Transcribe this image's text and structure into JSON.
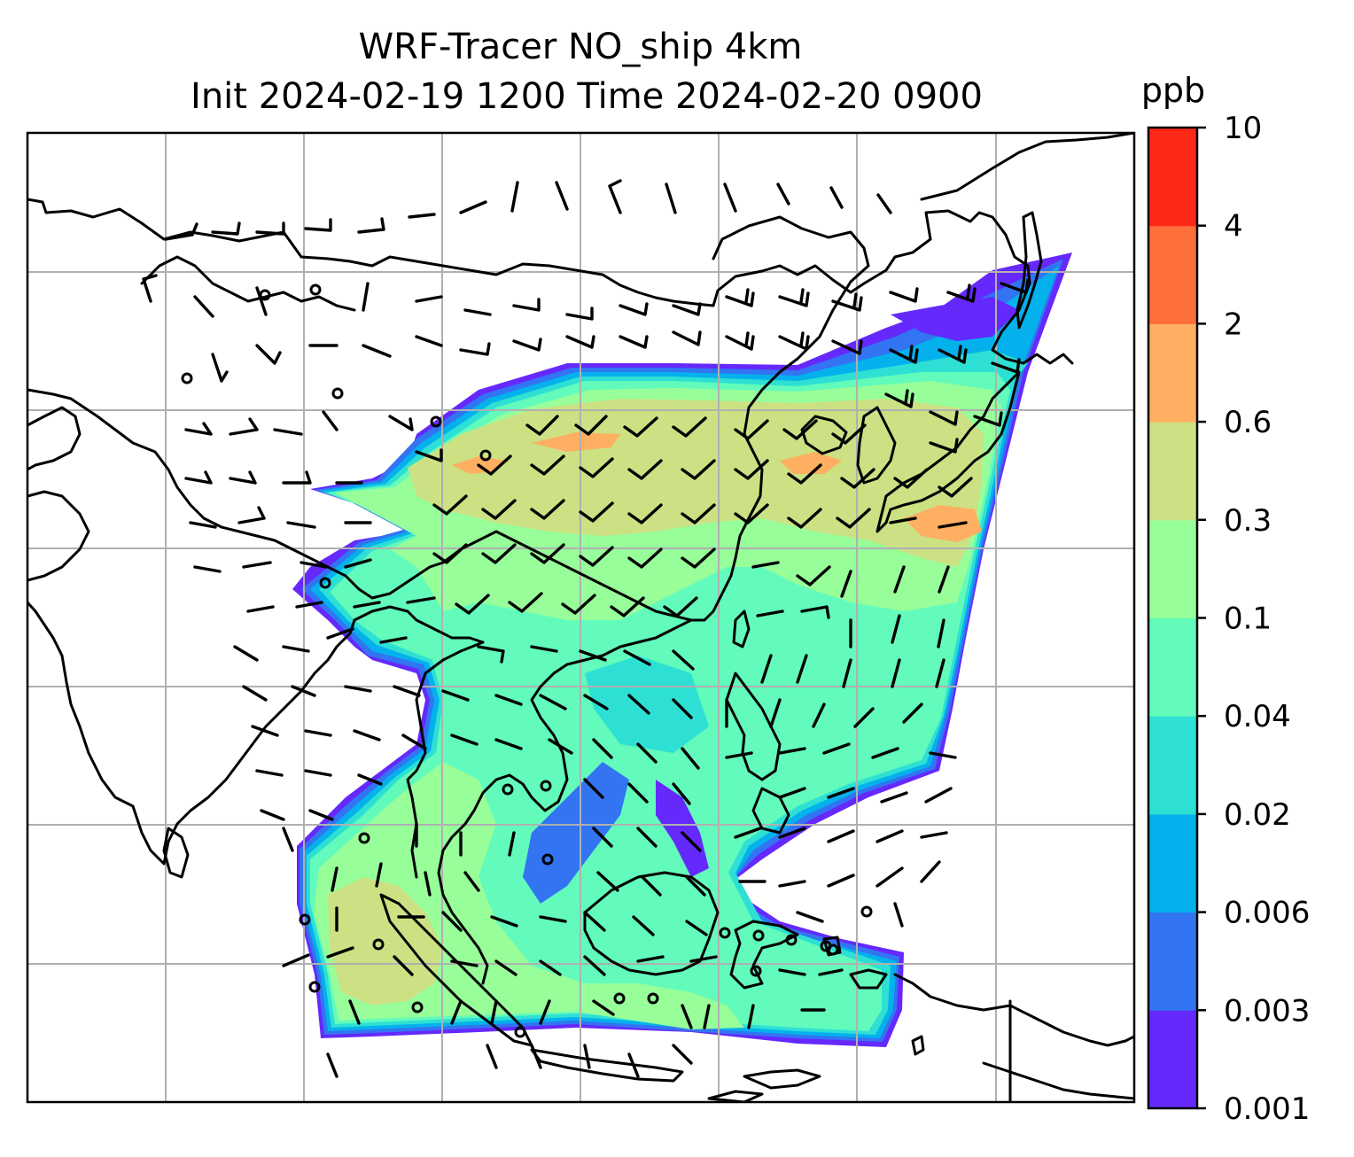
{
  "title": {
    "line1": "WRF-Tracer NO_ship 4km",
    "line2": "Init 2024-02-19 1200 Time 2024-02-20 0900"
  },
  "colorbar": {
    "unit": "ppb",
    "levels": [
      "0.001",
      "0.003",
      "0.006",
      "0.02",
      "0.04",
      "0.1",
      "0.3",
      "0.6",
      "2",
      "4",
      "10"
    ],
    "colors": [
      "#6529fc",
      "#3274f2",
      "#04b1ec",
      "#2ee0d4",
      "#62fbbb",
      "#97fe9a",
      "#cbe183",
      "#feaf61",
      "#fe6e3a",
      "#fe2817"
    ]
  },
  "map": {
    "gridlines": true,
    "coastline_color": "#000000",
    "gridline_color": "#b0b0b0",
    "field_name": "NO_ship",
    "wind_barbs": true,
    "calm_markers": true
  }
}
